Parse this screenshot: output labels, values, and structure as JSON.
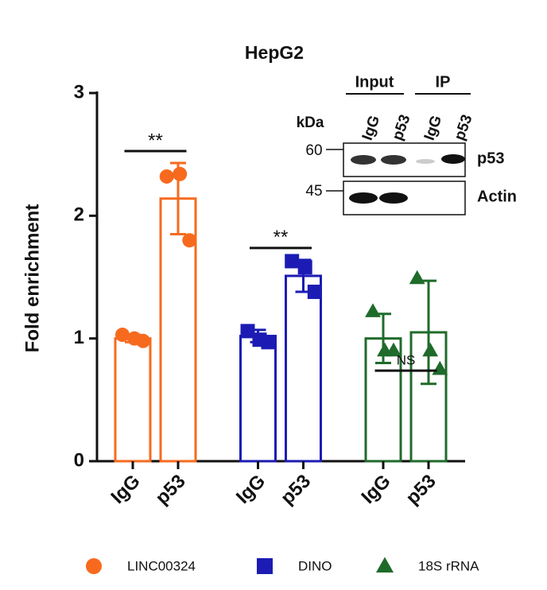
{
  "chart_data": {
    "type": "bar",
    "title": "HepG2",
    "y_label": "Fold enrichment",
    "categories": [
      "IgG",
      "p53"
    ],
    "ylim": [
      0,
      3
    ],
    "yticks": [
      0,
      1,
      2,
      3
    ],
    "series": [
      {
        "name": "LINC00324",
        "color": "#f76a1e",
        "marker": "circle",
        "values": [
          1.0,
          2.14
        ],
        "errors": [
          0.03,
          0.29
        ],
        "points": [
          [
            1.03,
            1.0,
            0.98
          ],
          [
            2.32,
            2.34,
            1.8
          ]
        ]
      },
      {
        "name": "DINO",
        "color": "#1c1cb4",
        "marker": "square",
        "values": [
          1.02,
          1.51
        ],
        "errors": [
          0.05,
          0.13
        ],
        "points": [
          [
            1.06,
            0.99,
            0.97
          ],
          [
            1.63,
            1.58,
            1.38
          ]
        ]
      },
      {
        "name": "18S rRNA",
        "color": "#1f6b2b",
        "marker": "triangle",
        "values": [
          1.0,
          1.05
        ],
        "errors": [
          0.2,
          0.42
        ],
        "points": [
          [
            1.22,
            0.9,
            0.9
          ],
          [
            1.49,
            0.9,
            0.75
          ]
        ]
      }
    ],
    "annotations": [
      "**",
      "**",
      "NS"
    ]
  },
  "blot": {
    "groups": [
      "Input",
      "IP"
    ],
    "lanes": [
      "IgG",
      "p53",
      "IgG",
      "p53"
    ],
    "unit": "kDa",
    "markers": [
      "60",
      "45"
    ],
    "bands": [
      "p53",
      "Actin"
    ]
  }
}
